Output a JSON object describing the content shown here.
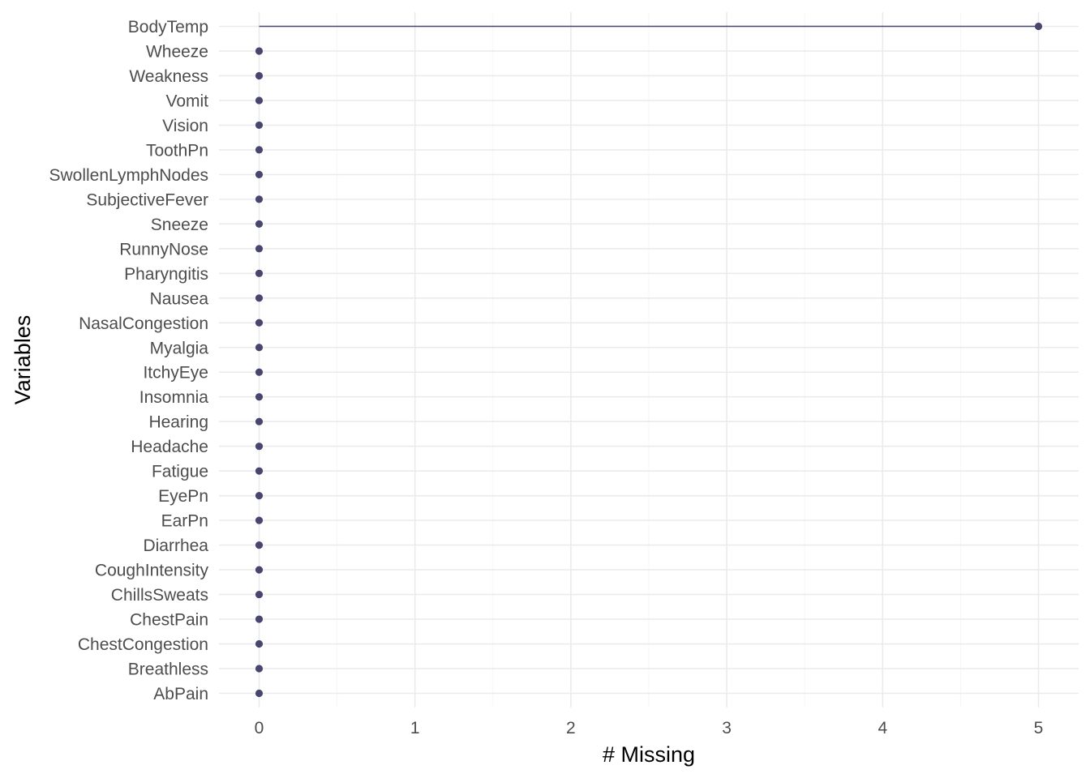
{
  "chart_data": {
    "type": "lollipop",
    "xlabel": "# Missing",
    "ylabel": "Variables",
    "xlim": [
      -0.25,
      5.25
    ],
    "x_ticks": [
      0,
      1,
      2,
      3,
      4,
      5
    ],
    "grid": true,
    "point_color": "#46466e",
    "categories": [
      "BodyTemp",
      "Wheeze",
      "Weakness",
      "Vomit",
      "Vision",
      "ToothPn",
      "SwollenLymphNodes",
      "SubjectiveFever",
      "Sneeze",
      "RunnyNose",
      "Pharyngitis",
      "Nausea",
      "NasalCongestion",
      "Myalgia",
      "ItchyEye",
      "Insomnia",
      "Hearing",
      "Headache",
      "Fatigue",
      "EyePn",
      "EarPn",
      "Diarrhea",
      "CoughIntensity",
      "ChillsSweats",
      "ChestPain",
      "ChestCongestion",
      "Breathless",
      "AbPain"
    ],
    "values": [
      5,
      0,
      0,
      0,
      0,
      0,
      0,
      0,
      0,
      0,
      0,
      0,
      0,
      0,
      0,
      0,
      0,
      0,
      0,
      0,
      0,
      0,
      0,
      0,
      0,
      0,
      0,
      0
    ]
  }
}
